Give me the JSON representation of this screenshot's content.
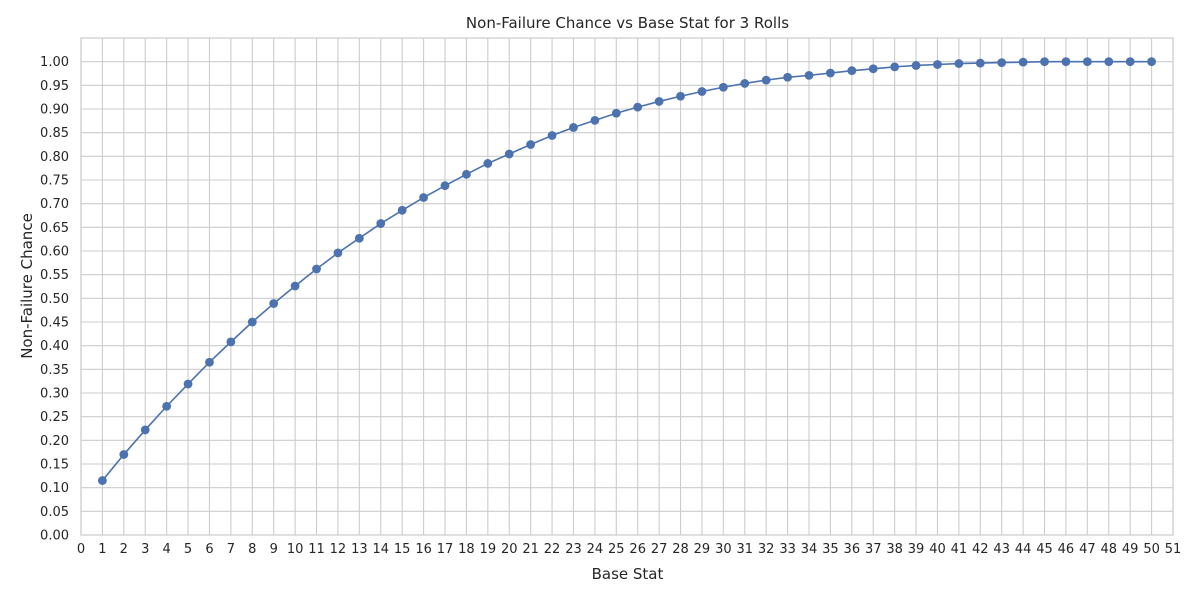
{
  "chart_data": {
    "type": "line",
    "title": "Non-Failure Chance vs Base Stat for 3 Rolls",
    "xlabel": "Base Stat",
    "ylabel": "Non-Failure Chance",
    "xlim": [
      0,
      51
    ],
    "ylim": [
      0,
      1.05
    ],
    "x_ticks": [
      0,
      1,
      2,
      3,
      4,
      5,
      6,
      7,
      8,
      9,
      10,
      11,
      12,
      13,
      14,
      15,
      16,
      17,
      18,
      19,
      20,
      21,
      22,
      23,
      24,
      25,
      26,
      27,
      28,
      29,
      30,
      31,
      32,
      33,
      34,
      35,
      36,
      37,
      38,
      39,
      40,
      41,
      42,
      43,
      44,
      45,
      46,
      47,
      48,
      49,
      50,
      51
    ],
    "y_ticks": [
      "0.00",
      "0.05",
      "0.10",
      "0.15",
      "0.20",
      "0.25",
      "0.30",
      "0.35",
      "0.40",
      "0.45",
      "0.50",
      "0.55",
      "0.60",
      "0.65",
      "0.70",
      "0.75",
      "0.80",
      "0.85",
      "0.90",
      "0.95",
      "1.00"
    ],
    "grid": true,
    "marker": "circle",
    "series_color": "#4c72b0",
    "series": [
      {
        "x": [
          1,
          2,
          3,
          4,
          5,
          6,
          7,
          8,
          9,
          10,
          11,
          12,
          13,
          14,
          15,
          16,
          17,
          18,
          19,
          20,
          21,
          22,
          23,
          24,
          25,
          26,
          27,
          28,
          29,
          30,
          31,
          32,
          33,
          34,
          35,
          36,
          37,
          38,
          39,
          40,
          41,
          42,
          43,
          44,
          45,
          46,
          47,
          48,
          49,
          50
        ],
        "values": [
          0.115,
          0.17,
          0.222,
          0.272,
          0.319,
          0.365,
          0.408,
          0.45,
          0.489,
          0.526,
          0.562,
          0.596,
          0.627,
          0.658,
          0.686,
          0.713,
          0.738,
          0.762,
          0.785,
          0.805,
          0.825,
          0.844,
          0.861,
          0.876,
          0.891,
          0.904,
          0.916,
          0.927,
          0.937,
          0.946,
          0.954,
          0.961,
          0.967,
          0.971,
          0.976,
          0.981,
          0.985,
          0.989,
          0.992,
          0.994,
          0.996,
          0.997,
          0.998,
          0.999,
          1.0,
          1.0,
          1.0,
          1.0,
          1.0,
          1.0
        ]
      }
    ]
  }
}
